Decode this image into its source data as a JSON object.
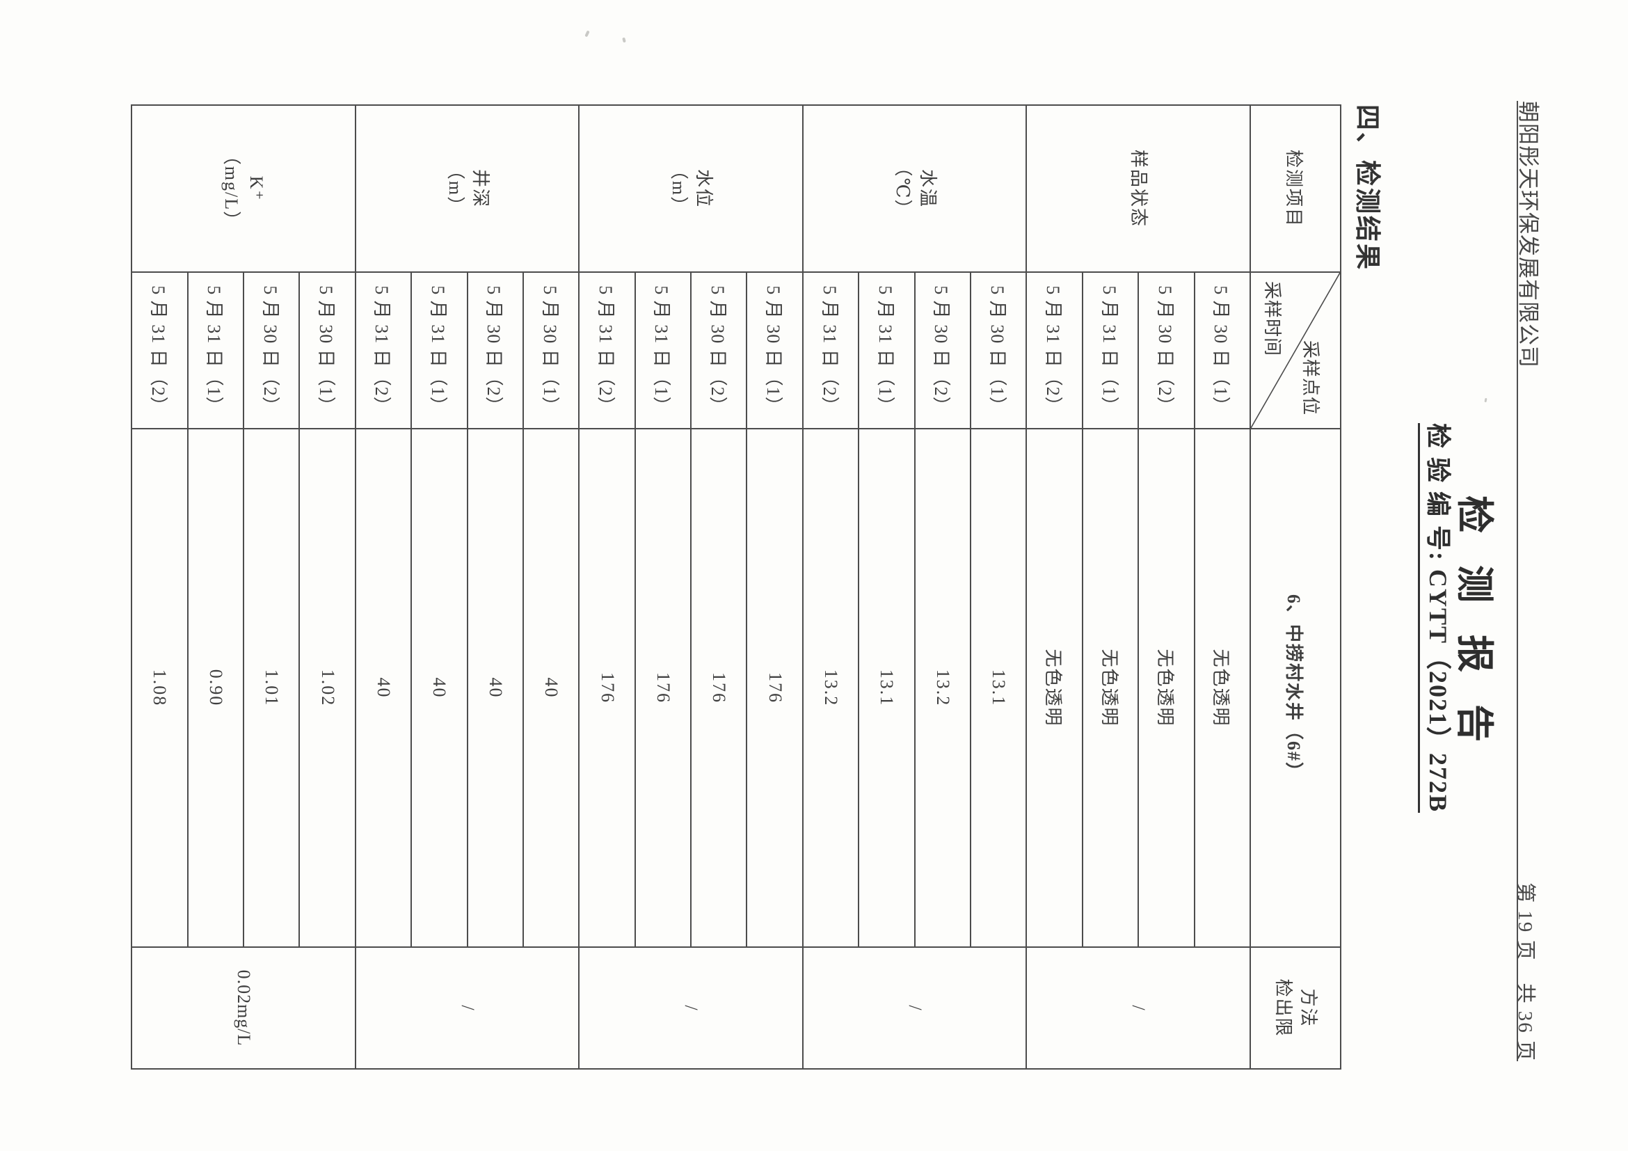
{
  "page": {
    "header": {
      "company": "朝阳彤天环保发展有限公司",
      "page_indicator": "第 19 页　共 36 页"
    },
    "title": "检测报告",
    "report_no": "检 验 编 号: CYTT（2021）272B",
    "section_heading": "四、检测结果"
  },
  "colors": {
    "ink": "#3f3f3f",
    "line": "#4c4c4c"
  },
  "table": {
    "header": {
      "test_item": "检测项目",
      "diagonal_top": "采样点位",
      "diagonal_bottom": "采样时间",
      "sampling_point": "6、中捞村水井（6#）",
      "limit_line1": "方法",
      "limit_line2": "检出限"
    },
    "groups": [
      {
        "item_lines": [
          "样品状态"
        ],
        "limit": "/",
        "rows": [
          {
            "time": "5 月 30 日（1）",
            "value": "无色透明"
          },
          {
            "time": "5 月 30 日（2）",
            "value": "无色透明"
          },
          {
            "time": "5 月 31 日（1）",
            "value": "无色透明"
          },
          {
            "time": "5 月 31 日（2）",
            "value": "无色透明"
          }
        ]
      },
      {
        "item_lines": [
          "水温",
          "（℃）"
        ],
        "limit": "/",
        "rows": [
          {
            "time": "5 月 30 日（1）",
            "value": "13.1"
          },
          {
            "time": "5 月 30 日（2）",
            "value": "13.2"
          },
          {
            "time": "5 月 31 日（1）",
            "value": "13.1"
          },
          {
            "time": "5 月 31 日（2）",
            "value": "13.2"
          }
        ]
      },
      {
        "item_lines": [
          "水位",
          "（m）"
        ],
        "limit": "/",
        "rows": [
          {
            "time": "5 月 30 日（1）",
            "value": "176"
          },
          {
            "time": "5 月 30 日（2）",
            "value": "176"
          },
          {
            "time": "5 月 31 日（1）",
            "value": "176"
          },
          {
            "time": "5 月 31 日（2）",
            "value": "176"
          }
        ]
      },
      {
        "item_lines": [
          "井深",
          "（m）"
        ],
        "limit": "/",
        "rows": [
          {
            "time": "5 月 30 日（1）",
            "value": "40"
          },
          {
            "time": "5 月 30 日（2）",
            "value": "40"
          },
          {
            "time": "5 月 31 日（1）",
            "value": "40"
          },
          {
            "time": "5 月 31 日（2）",
            "value": "40"
          }
        ]
      },
      {
        "item_lines": [
          "K⁺",
          "（mg/L）"
        ],
        "limit": "0.02mg/L",
        "rows": [
          {
            "time": "5 月 30 日（1）",
            "value": "1.02"
          },
          {
            "time": "5 月 30 日（2）",
            "value": "1.01"
          },
          {
            "time": "5 月 31 日（1）",
            "value": "0.90"
          },
          {
            "time": "5 月 31 日（2）",
            "value": "1.08"
          }
        ]
      }
    ]
  }
}
